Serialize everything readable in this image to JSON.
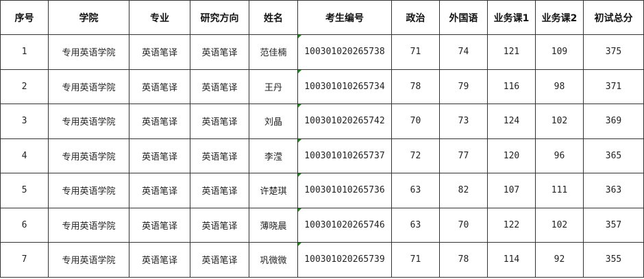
{
  "table": {
    "headers": [
      "序号",
      "学院",
      "专业",
      "研究方向",
      "姓名",
      "考生编号",
      "政治",
      "外国语",
      "业务课1",
      "业务课2",
      "初试总分"
    ],
    "rows": [
      [
        "1",
        "专用英语学院",
        "英语笔译",
        "英语笔译",
        "范佳楠",
        "100301020265738",
        "71",
        "74",
        "121",
        "109",
        "375"
      ],
      [
        "2",
        "专用英语学院",
        "英语笔译",
        "英语笔译",
        "王丹",
        "100301010265734",
        "78",
        "79",
        "116",
        "98",
        "371"
      ],
      [
        "3",
        "专用英语学院",
        "英语笔译",
        "英语笔译",
        "刘晶",
        "100301020265742",
        "70",
        "73",
        "124",
        "102",
        "369"
      ],
      [
        "4",
        "专用英语学院",
        "英语笔译",
        "英语笔译",
        "李滢",
        "100301010265737",
        "72",
        "77",
        "120",
        "96",
        "365"
      ],
      [
        "5",
        "专用英语学院",
        "英语笔译",
        "英语笔译",
        "许楚琪",
        "100301010265736",
        "63",
        "82",
        "107",
        "111",
        "363"
      ],
      [
        "6",
        "专用英语学院",
        "英语笔译",
        "英语笔译",
        "薄晓晨",
        "100301020265746",
        "63",
        "70",
        "122",
        "102",
        "357"
      ],
      [
        "7",
        "专用英语学院",
        "英语笔译",
        "英语笔译",
        "巩微微",
        "100301020265739",
        "71",
        "78",
        "114",
        "92",
        "355"
      ]
    ],
    "marker_color": "#1a8a1a"
  }
}
